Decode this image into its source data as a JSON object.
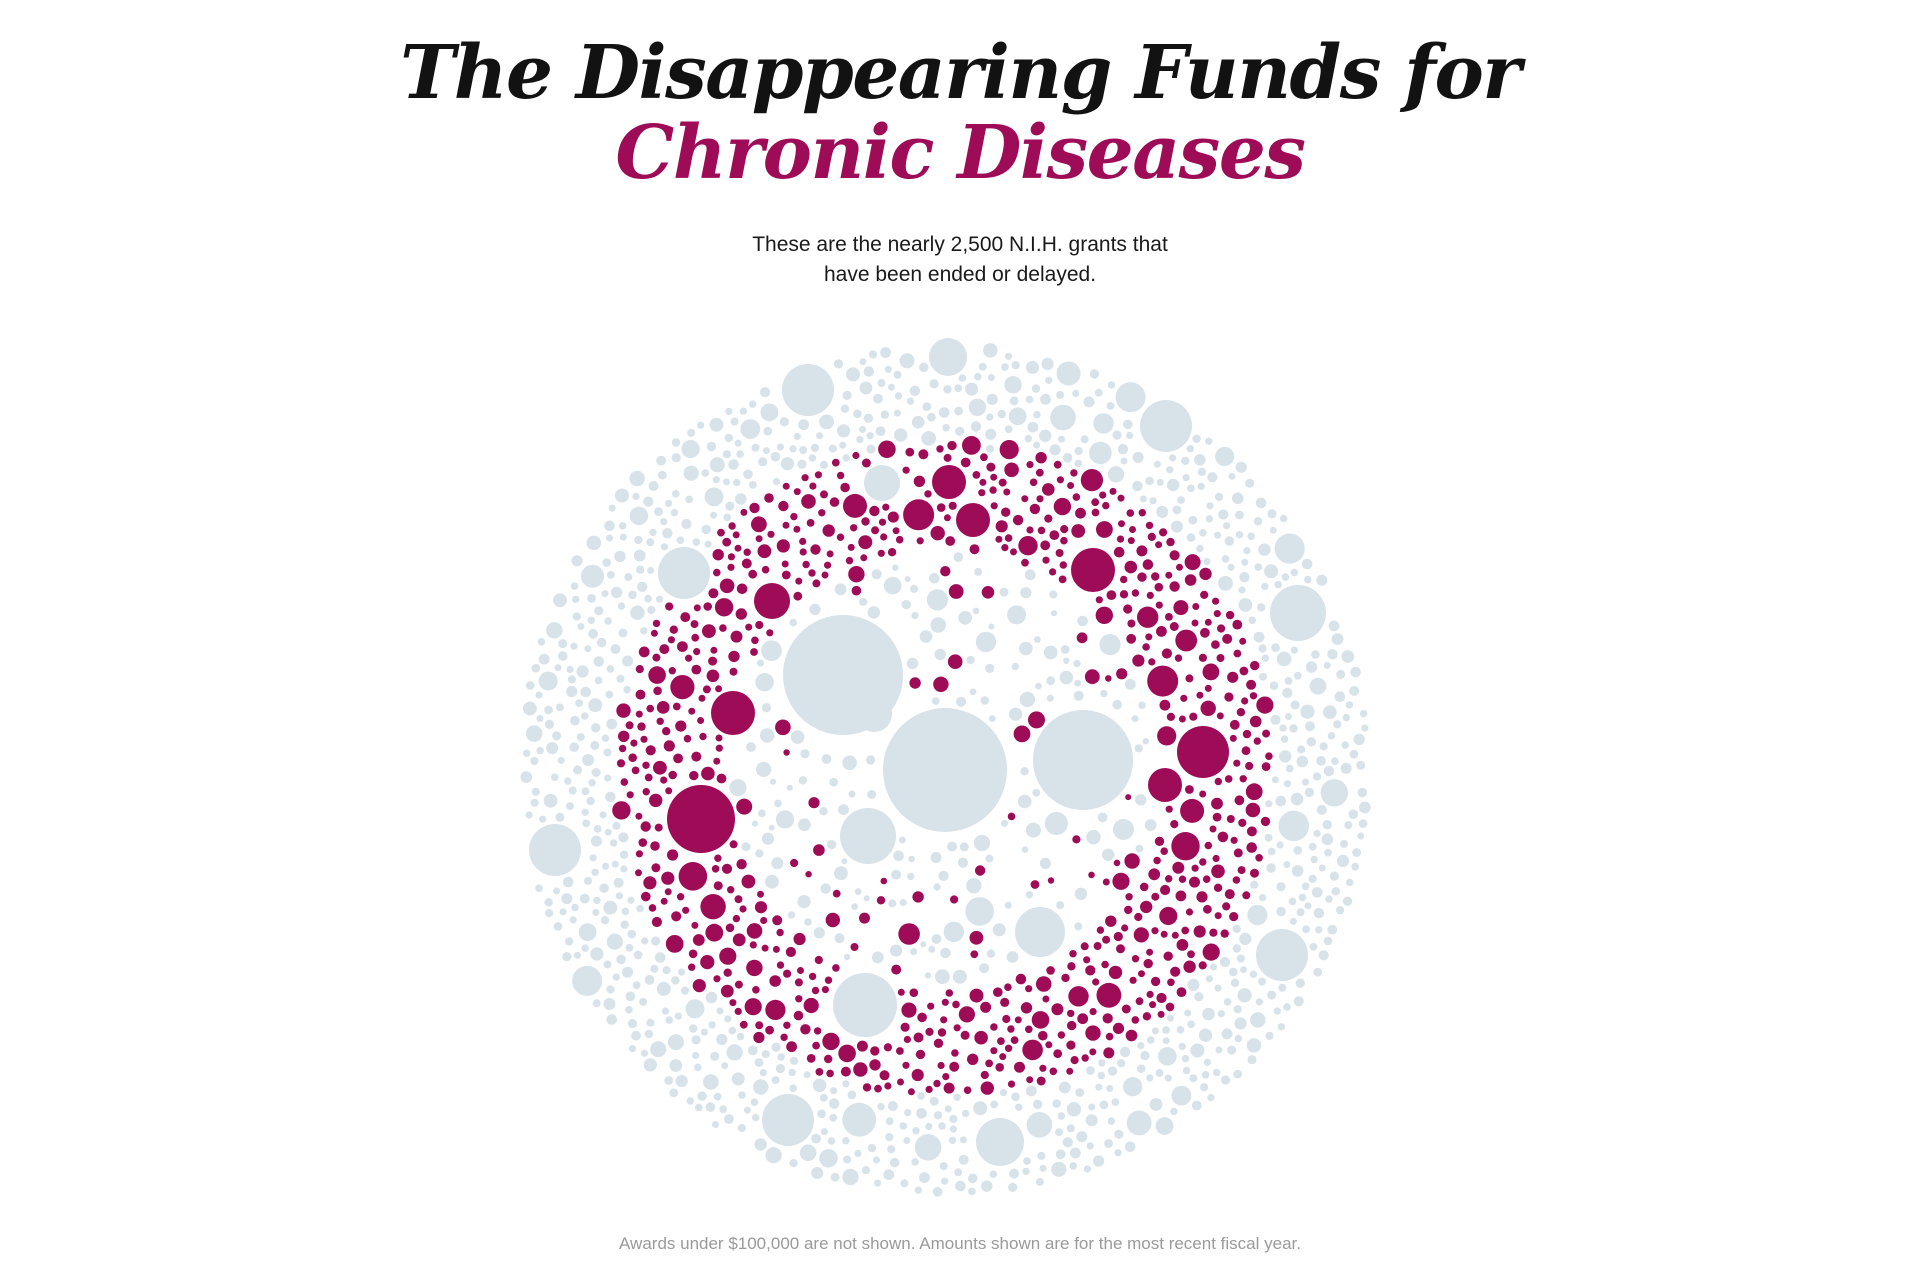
{
  "header": {
    "title_line_1": "The Disappearing Funds for",
    "title_line_2": "Chronic Diseases",
    "subtitle_line_1": "These are the nearly 2,500 N.I.H. grants that",
    "subtitle_line_2": "have been ended or delayed."
  },
  "footnote": "Awards under $100,000 are not shown. Amounts shown are for the most recent fiscal year.",
  "colors": {
    "highlight": "#9e0b57",
    "other": "#d8e2e9",
    "title": "#121212",
    "title_accent": "#9e0b57",
    "footnote": "#9a9a9a"
  }
}
